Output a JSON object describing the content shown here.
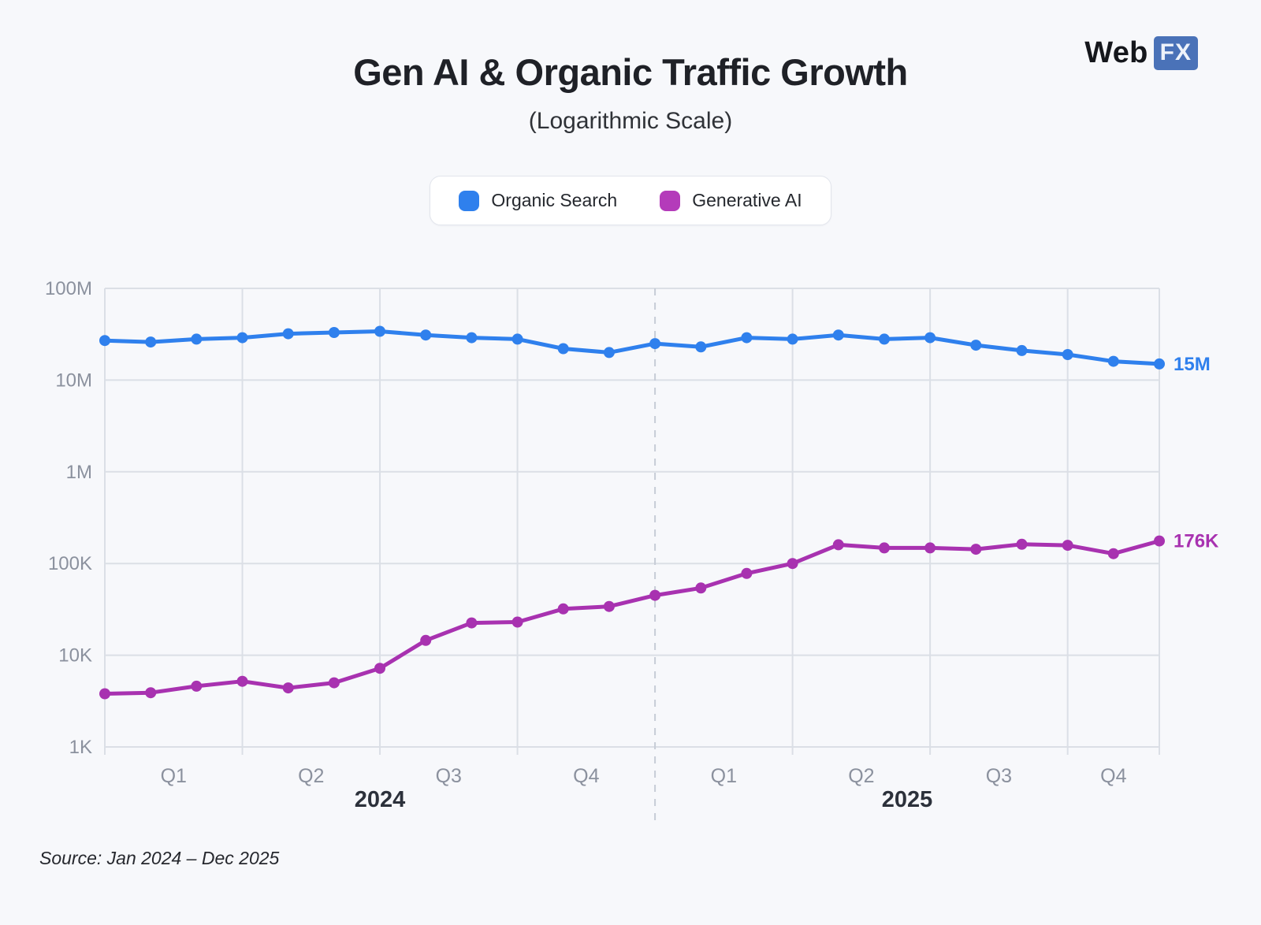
{
  "page": {
    "background_color": "#f7f8fb"
  },
  "brand": {
    "prefix": "Web",
    "suffix": "FX",
    "fx_bg_color": "#4A72B8"
  },
  "header": {
    "title": "Gen AI & Organic Traffic Growth",
    "subtitle": "(Logarithmic Scale)"
  },
  "legend": {
    "items": [
      {
        "label": "Organic Search",
        "color": "#2F80ED"
      },
      {
        "label": "Generative AI",
        "color": "#B43BBA"
      }
    ]
  },
  "source_note": "Source: Jan 2024 – Dec 2025",
  "chart_data": {
    "type": "line",
    "title": "Gen AI & Organic Traffic Growth",
    "subtitle": "(Logarithmic Scale)",
    "y_axis": {
      "scale": "log10",
      "tick_labels": [
        "100M",
        "10M",
        "1M",
        "100K",
        "10K",
        "1K"
      ],
      "tick_values": [
        100000000,
        10000000,
        1000000,
        100000,
        10000,
        1000
      ],
      "range": [
        1000,
        100000000
      ]
    },
    "x_axis": {
      "months_total": 24,
      "start": "Jan 2024",
      "end": "Dec 2025",
      "quarter_labels": [
        "Q1",
        "Q2",
        "Q3",
        "Q4",
        "Q1",
        "Q2",
        "Q3",
        "Q4"
      ],
      "year_labels": [
        "2024",
        "2025"
      ],
      "year_divider_after_month": 12
    },
    "grid": {
      "horizontal": true,
      "vertical_quarters": true,
      "divider_style": "dashed"
    },
    "legend_position": "top-center",
    "series": [
      {
        "name": "Organic Search",
        "color": "#2F80ED",
        "end_label": "15M",
        "values": [
          27000000,
          26000000,
          28000000,
          29000000,
          32000000,
          33000000,
          34000000,
          31000000,
          29000000,
          28000000,
          22000000,
          20000000,
          25000000,
          23000000,
          29000000,
          28000000,
          31000000,
          28000000,
          29000000,
          24000000,
          21000000,
          19000000,
          16000000,
          15000000
        ]
      },
      {
        "name": "Generative AI",
        "color": "#A832B0",
        "end_label": "176K",
        "values": [
          3800,
          3900,
          4600,
          5200,
          4400,
          5000,
          7200,
          14500,
          22500,
          23000,
          32000,
          34000,
          45000,
          54000,
          78000,
          100000,
          160000,
          148000,
          148000,
          143000,
          162000,
          158000,
          128000,
          176000
        ]
      }
    ]
  }
}
